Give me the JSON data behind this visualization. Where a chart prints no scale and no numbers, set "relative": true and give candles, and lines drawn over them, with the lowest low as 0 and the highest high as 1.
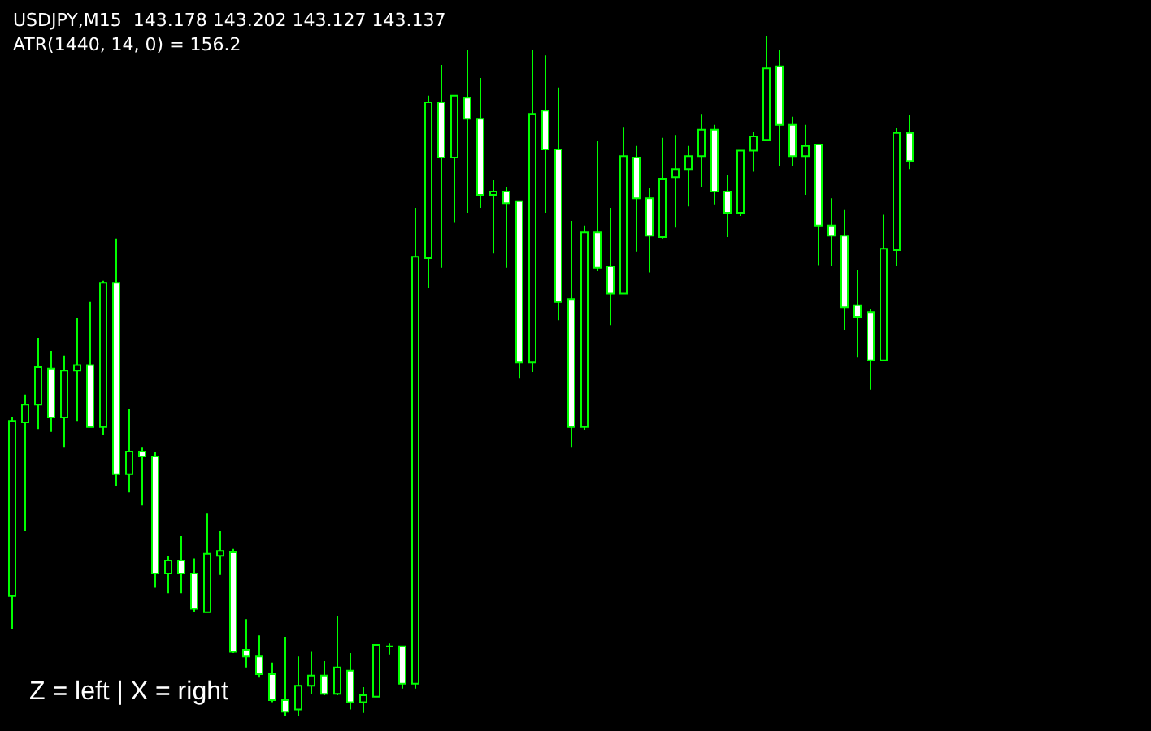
{
  "chart_data": {
    "type": "candlestick",
    "title": "USDJPY,M15  143.178 143.202 143.127 143.137",
    "subtitle": "ATR(1440, 14, 0) = 156.2",
    "annotations": [
      "Z = left | X = right"
    ],
    "relative": true,
    "color": "#00ff00",
    "categories": [
      null,
      null,
      null,
      null,
      null,
      null,
      null,
      null,
      null,
      null,
      null,
      null,
      null,
      null,
      null,
      null,
      null,
      null,
      null,
      null,
      null,
      null,
      null,
      null,
      null,
      null,
      null,
      null,
      null,
      null,
      null,
      null,
      null,
      null,
      null,
      null,
      null,
      null,
      null,
      null,
      null,
      null,
      null,
      null,
      null,
      null,
      null,
      null,
      null,
      null,
      null,
      null,
      null,
      null,
      null,
      null,
      null,
      null,
      null,
      null,
      null,
      null,
      null,
      null,
      null,
      null,
      null,
      null,
      null,
      null
    ],
    "ohlc": [
      [
        0.177,
        0.439,
        0.129,
        0.434
      ],
      [
        0.432,
        0.473,
        0.272,
        0.458
      ],
      [
        0.458,
        0.556,
        0.422,
        0.513
      ],
      [
        0.511,
        0.537,
        0.418,
        0.439
      ],
      [
        0.439,
        0.53,
        0.396,
        0.508
      ],
      [
        0.508,
        0.585,
        0.434,
        0.516
      ],
      [
        0.516,
        0.609,
        0.425,
        0.425
      ],
      [
        0.425,
        0.64,
        0.413,
        0.637
      ],
      [
        0.637,
        0.702,
        0.339,
        0.356
      ],
      [
        0.356,
        0.451,
        0.329,
        0.389
      ],
      [
        0.389,
        0.396,
        0.31,
        0.382
      ],
      [
        0.382,
        0.389,
        0.189,
        0.21
      ],
      [
        0.21,
        0.236,
        0.181,
        0.229
      ],
      [
        0.229,
        0.265,
        0.181,
        0.21
      ],
      [
        0.21,
        0.232,
        0.153,
        0.158
      ],
      [
        0.153,
        0.298,
        0.153,
        0.239
      ],
      [
        0.236,
        0.272,
        0.208,
        0.243
      ],
      [
        0.241,
        0.246,
        0.093,
        0.095
      ],
      [
        0.098,
        0.143,
        0.072,
        0.088
      ],
      [
        0.088,
        0.119,
        0.057,
        0.062
      ],
      [
        0.062,
        0.079,
        0.021,
        0.024
      ],
      [
        0.024,
        0.117,
        0,
        0.007
      ],
      [
        0.01,
        0.088,
        0,
        0.045
      ],
      [
        0.045,
        0.095,
        0.033,
        0.06
      ],
      [
        0.06,
        0.081,
        0.031,
        0.033
      ],
      [
        0.033,
        0.148,
        0.031,
        0.072
      ],
      [
        0.067,
        0.093,
        0.01,
        0.021
      ],
      [
        0.021,
        0.043,
        0.005,
        0.031
      ],
      [
        0.029,
        0.105,
        0.029,
        0.105
      ],
      [
        0.103,
        0.107,
        0.091,
        0.103
      ],
      [
        0.103,
        0.103,
        0.041,
        0.048
      ],
      [
        0.048,
        0.747,
        0.041,
        0.675
      ],
      [
        0.673,
        0.912,
        0.63,
        0.902
      ],
      [
        0.902,
        0.957,
        0.659,
        0.821
      ],
      [
        0.821,
        0.912,
        0.726,
        0.912
      ],
      [
        0.909,
        0.979,
        0.74,
        0.878
      ],
      [
        0.878,
        0.938,
        0.747,
        0.766
      ],
      [
        0.766,
        0.788,
        0.68,
        0.771
      ],
      [
        0.771,
        0.778,
        0.659,
        0.754
      ],
      [
        0.757,
        0.757,
        0.496,
        0.52
      ],
      [
        0.52,
        0.979,
        0.506,
        0.885
      ],
      [
        0.89,
        0.971,
        0.74,
        0.833
      ],
      [
        0.833,
        0.924,
        0.582,
        0.609
      ],
      [
        0.613,
        0.728,
        0.396,
        0.425
      ],
      [
        0.425,
        0.721,
        0.42,
        0.711
      ],
      [
        0.711,
        0.845,
        0.654,
        0.659
      ],
      [
        0.661,
        0.747,
        0.575,
        0.621
      ],
      [
        0.621,
        0.866,
        0.621,
        0.823
      ],
      [
        0.821,
        0.838,
        0.683,
        0.761
      ],
      [
        0.761,
        0.776,
        0.652,
        0.706
      ],
      [
        0.704,
        0.85,
        0.702,
        0.79
      ],
      [
        0.792,
        0.854,
        0.718,
        0.804
      ],
      [
        0.804,
        0.838,
        0.749,
        0.823
      ],
      [
        0.823,
        0.885,
        0.778,
        0.862
      ],
      [
        0.862,
        0.869,
        0.752,
        0.771
      ],
      [
        0.771,
        0.795,
        0.704,
        0.74
      ],
      [
        0.74,
        0.831,
        0.735,
        0.831
      ],
      [
        0.831,
        0.859,
        0.8,
        0.852
      ],
      [
        0.847,
        1,
        0.845,
        0.952
      ],
      [
        0.955,
        0.979,
        0.809,
        0.869
      ],
      [
        0.869,
        0.881,
        0.809,
        0.823
      ],
      [
        0.823,
        0.869,
        0.766,
        0.838
      ],
      [
        0.84,
        0.84,
        0.663,
        0.721
      ],
      [
        0.721,
        0.761,
        0.661,
        0.706
      ],
      [
        0.706,
        0.745,
        0.568,
        0.601
      ],
      [
        0.604,
        0.656,
        0.527,
        0.587
      ],
      [
        0.594,
        0.599,
        0.48,
        0.523
      ],
      [
        0.523,
        0.737,
        0.523,
        0.687
      ],
      [
        0.685,
        0.864,
        0.661,
        0.857
      ],
      [
        0.857,
        0.883,
        0.804,
        0.816
      ]
    ]
  }
}
